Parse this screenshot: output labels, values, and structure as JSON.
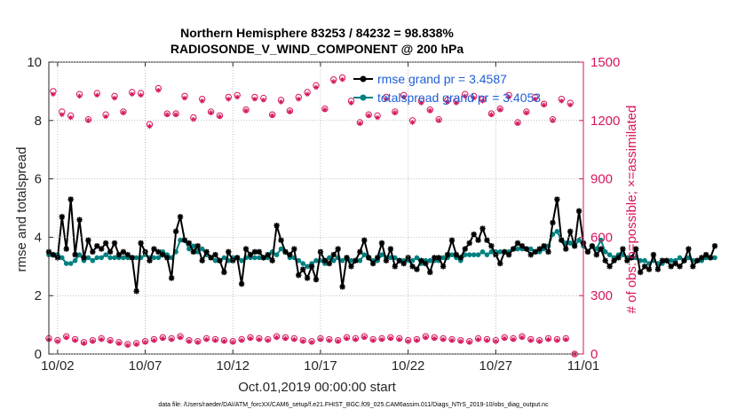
{
  "chart_data": {
    "type": "line",
    "title": "Northern Hemisphere 83253 / 84232 = 98.838%",
    "subtitle": "RADIOSONDE_V_WIND_COMPONENT @ 200 hPa",
    "xlabel": "Oct.01,2019 00:00:00 start",
    "ylabel": "rmse and totalspread",
    "y2label": "# of obs: o=possible; ×=assimilated",
    "footnote": "data file: /Users/raeder/DAI/ATM_forcXX/CAM6_setup/f.e21.FHIST_BGC.f09_025.CAM6assim.011/Diags_NTrS_2019-10/obs_diag_output.nc",
    "x_ticks": [
      "10/02",
      "10/07",
      "10/12",
      "10/17",
      "10/22",
      "10/27",
      "11/01"
    ],
    "y_ticks": [
      "0",
      "2",
      "4",
      "6",
      "8",
      "10"
    ],
    "y2_ticks": [
      "0",
      "300",
      "600",
      "900",
      "1200",
      "1500"
    ],
    "xlim": [
      1.5,
      32
    ],
    "ylim": [
      0,
      10
    ],
    "y2lim": [
      0,
      1500
    ],
    "legend": {
      "position": "top-right",
      "entries": [
        "rmse grand pr = 3.4587",
        "totalspread grand pr = 3.4053"
      ]
    },
    "colors": {
      "rmse": "#000000",
      "spread": "#008080",
      "obs": "#d6165e",
      "legend_text": "#1f5fd6"
    },
    "series": [
      {
        "name": "rmse",
        "x_start": 1.5,
        "x_step": 0.25,
        "values": [
          3.5,
          3.4,
          3.3,
          4.7,
          3.6,
          5.3,
          3.4,
          4.6,
          3.3,
          3.9,
          3.5,
          3.7,
          3.6,
          3.8,
          3.5,
          3.8,
          3.4,
          3.5,
          3.4,
          3.3,
          2.15,
          3.8,
          3.5,
          3.2,
          3.6,
          3.5,
          3.4,
          3.3,
          2.6,
          4.2,
          4.7,
          3.9,
          3.8,
          3.5,
          3.7,
          3.2,
          3.5,
          3.3,
          3.4,
          3.2,
          2.8,
          3.5,
          3.2,
          3.3,
          2.4,
          3.6,
          3.4,
          3.5,
          3.5,
          3.3,
          3.4,
          3.2,
          4.4,
          3.9,
          3.5,
          3.4,
          3.6,
          2.7,
          2.9,
          2.6,
          3.0,
          2.55,
          3.5,
          3.2,
          3.1,
          3.4,
          3.6,
          2.3,
          3.3,
          3.0,
          3.2,
          3.5,
          3.9,
          3.3,
          3.1,
          3.3,
          3.8,
          3.2,
          3.6,
          3.0,
          3.2,
          3.1,
          3.3,
          3.0,
          2.9,
          3.2,
          3.1,
          2.8,
          3.3,
          3.3,
          3.0,
          3.4,
          3.9,
          3.4,
          3.3,
          3.6,
          3.8,
          4.1,
          3.9,
          4.3,
          3.9,
          3.7,
          3.4,
          3.1,
          3.5,
          3.4,
          3.6,
          3.8,
          3.7,
          3.6,
          3.4,
          3.5,
          3.6,
          3.7,
          3.5,
          4.5,
          5.3,
          3.9,
          3.6,
          4.2,
          3.7,
          4.9,
          3.8,
          3.5,
          3.7,
          3.4,
          3.6,
          3.2,
          3.0,
          3.2,
          3.3,
          3.6,
          3.2,
          3.3,
          3.6,
          2.8,
          3.0,
          2.9,
          3.4,
          2.9,
          3.2,
          3.2,
          3.0,
          3.1,
          3.0,
          3.2,
          3.6,
          3.0,
          3.2,
          3.3,
          3.4,
          3.3,
          3.7
        ]
      },
      {
        "name": "totalspread",
        "x_start": 1.5,
        "x_step": 0.25,
        "values": [
          3.4,
          3.4,
          3.4,
          3.3,
          3.1,
          3.1,
          3.2,
          3.4,
          3.2,
          3.3,
          3.2,
          3.3,
          3.3,
          3.4,
          3.3,
          3.3,
          3.3,
          3.3,
          3.3,
          3.3,
          3.3,
          3.3,
          3.4,
          3.3,
          3.3,
          3.3,
          3.5,
          3.4,
          3.3,
          3.5,
          3.9,
          3.9,
          3.6,
          3.7,
          3.5,
          3.6,
          3.4,
          3.3,
          3.2,
          3.2,
          3.3,
          3.2,
          3.3,
          3.3,
          3.2,
          3.3,
          3.3,
          3.3,
          3.3,
          3.3,
          3.3,
          3.5,
          3.4,
          3.6,
          3.5,
          3.3,
          3.3,
          3.2,
          3.1,
          3.0,
          3.1,
          3.2,
          3.2,
          3.1,
          3.3,
          3.2,
          3.3,
          3.2,
          3.3,
          3.2,
          3.2,
          3.2,
          3.4,
          3.3,
          3.2,
          3.2,
          3.4,
          3.3,
          3.3,
          3.3,
          3.2,
          3.2,
          3.2,
          3.2,
          3.3,
          3.1,
          3.2,
          3.2,
          3.2,
          3.2,
          3.3,
          3.3,
          3.4,
          3.3,
          3.2,
          3.4,
          3.4,
          3.4,
          3.4,
          3.5,
          3.4,
          3.5,
          3.5,
          3.5,
          3.5,
          3.5,
          3.6,
          3.6,
          3.6,
          3.6,
          3.6,
          3.5,
          3.5,
          3.6,
          3.7,
          4.1,
          4.2,
          3.9,
          3.8,
          3.8,
          3.7,
          3.9,
          3.7,
          3.5,
          3.7,
          3.6,
          3.9,
          3.5,
          3.4,
          3.3,
          3.4,
          3.4,
          3.3,
          3.3,
          3.3,
          3.2,
          3.2,
          3.1,
          3.2,
          3.1,
          3.1,
          3.2,
          3.2,
          3.2,
          3.3,
          3.2,
          3.3,
          3.2,
          3.2,
          3.2,
          3.3,
          3.3,
          3.3
        ]
      },
      {
        "name": "obs_possible",
        "x_start": 1.75,
        "x_step": 0.5,
        "values": [
          1350,
          1245,
          1225,
          1335,
          1205,
          1340,
          1230,
          1325,
          1245,
          1345,
          1340,
          1180,
          1365,
          1235,
          1235,
          1325,
          1215,
          1310,
          1245,
          1225,
          1320,
          1330,
          1255,
          1320,
          1315,
          1230,
          1305,
          1250,
          1320,
          1345,
          1380,
          1260,
          1410,
          1420,
          1300,
          1190,
          1230,
          1225,
          1320,
          1245,
          1330,
          1200,
          1300,
          1255,
          1205,
          1305,
          1300,
          1335,
          1325,
          1310,
          1235,
          1260,
          1330,
          1190,
          1245,
          1320,
          1285,
          1205,
          1310,
          1290
        ]
      },
      {
        "name": "obs_assimilated",
        "x_start": 1.75,
        "x_step": 0.5,
        "values": [
          1335,
          1230,
          1215,
          1325,
          1200,
          1330,
          1220,
          1315,
          1240,
          1335,
          1330,
          1170,
          1355,
          1230,
          1230,
          1315,
          1205,
          1300,
          1240,
          1220,
          1310,
          1320,
          1250,
          1310,
          1305,
          1225,
          1295,
          1245,
          1310,
          1335,
          1370,
          1255,
          1400,
          1410,
          1290,
          1185,
          1225,
          1215,
          1310,
          1240,
          1320,
          1190,
          1290,
          1250,
          1200,
          1295,
          1290,
          1325,
          1315,
          1300,
          1230,
          1255,
          1320,
          1185,
          1240,
          1310,
          1280,
          1200,
          1300,
          1280
        ]
      },
      {
        "name": "obs_low_possible",
        "x_start": 1.5,
        "x_step": 0.5,
        "values": [
          80,
          70,
          90,
          75,
          60,
          70,
          80,
          70,
          60,
          50,
          55,
          65,
          75,
          85,
          80,
          90,
          70,
          65,
          80,
          75,
          70,
          65,
          75,
          85,
          80,
          75,
          90,
          85,
          80,
          70,
          65,
          80,
          75,
          70,
          85,
          80,
          90,
          75,
          80,
          85,
          80,
          70,
          75,
          90,
          85,
          80,
          75,
          70,
          65,
          80,
          75,
          70,
          85,
          80,
          90,
          75,
          70,
          80,
          75,
          80,
          0
        ]
      },
      {
        "name": "obs_low_assimilated",
        "x_start": 1.5,
        "x_step": 0.5,
        "values": [
          75,
          65,
          85,
          70,
          55,
          65,
          75,
          65,
          55,
          45,
          50,
          60,
          70,
          80,
          75,
          85,
          65,
          60,
          75,
          70,
          65,
          60,
          70,
          80,
          75,
          70,
          85,
          80,
          75,
          65,
          60,
          75,
          70,
          65,
          80,
          75,
          85,
          70,
          75,
          80,
          75,
          65,
          70,
          85,
          80,
          75,
          70,
          65,
          60,
          75,
          70,
          65,
          80,
          75,
          85,
          70,
          65,
          75,
          70,
          75,
          0
        ]
      }
    ]
  }
}
